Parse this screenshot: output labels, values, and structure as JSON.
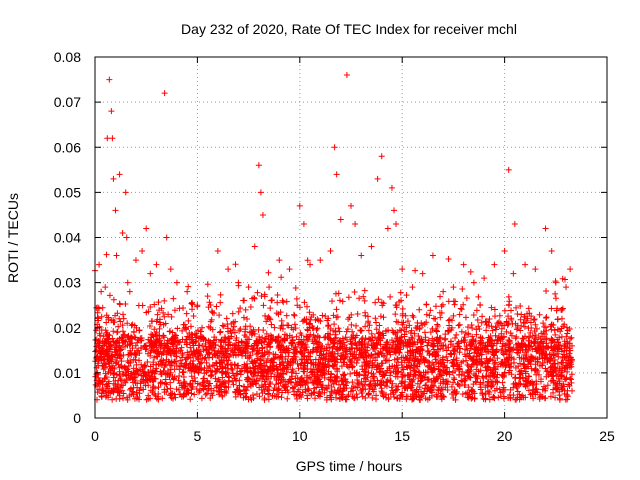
{
  "chart_data": {
    "type": "scatter",
    "title": "Day 232 of 2020, Rate Of TEC Index for receiver mchl",
    "xlabel": "GPS time / hours",
    "ylabel": "ROTI / TECUs",
    "xlim": [
      0,
      25
    ],
    "ylim": [
      0,
      0.08
    ],
    "xticks": [
      "0",
      "5",
      "10",
      "15",
      "20",
      "25"
    ],
    "yticks": [
      "0",
      "0.01",
      "0.02",
      "0.03",
      "0.04",
      "0.05",
      "0.06",
      "0.07",
      "0.08"
    ],
    "grid": true,
    "marker": "+",
    "color": "#ff0000",
    "series": [
      {
        "x": [
          0.2,
          0.3,
          0.5,
          0.6,
          0.7,
          0.8,
          0.85,
          0.9,
          1.0,
          1.05,
          1.2,
          1.35,
          1.5,
          1.55,
          1.6,
          1.7,
          2.0,
          2.3,
          2.5,
          2.7,
          3.0,
          3.4,
          3.5,
          3.7,
          4.0,
          4.5,
          5.0,
          5.5,
          6.0,
          6.5,
          7.0,
          7.5,
          7.8,
          8.0,
          8.1,
          8.2,
          8.5,
          9.0,
          9.5,
          10.0,
          10.2,
          10.5,
          11.0,
          11.5,
          11.7,
          11.8,
          12.0,
          12.3,
          12.5,
          12.7,
          13.0,
          13.5,
          13.8,
          14.0,
          14.3,
          14.5,
          14.6,
          14.7,
          15.0,
          15.5,
          16.0,
          16.5,
          17.0,
          17.5,
          18.0,
          18.5,
          19.0,
          19.5,
          20.0,
          20.2,
          20.5,
          21.0,
          21.5,
          22.0,
          22.3,
          22.5,
          23.0,
          23.2
        ],
        "y": [
          0.034,
          0.028,
          0.029,
          0.062,
          0.075,
          0.068,
          0.062,
          0.053,
          0.046,
          0.036,
          0.054,
          0.041,
          0.05,
          0.04,
          0.03,
          0.028,
          0.035,
          0.037,
          0.042,
          0.032,
          0.034,
          0.072,
          0.04,
          0.033,
          0.03,
          0.028,
          0.025,
          0.027,
          0.037,
          0.033,
          0.03,
          0.029,
          0.038,
          0.056,
          0.05,
          0.045,
          0.029,
          0.035,
          0.033,
          0.047,
          0.043,
          0.034,
          0.035,
          0.037,
          0.06,
          0.054,
          0.044,
          0.076,
          0.047,
          0.043,
          0.036,
          0.038,
          0.053,
          0.058,
          0.042,
          0.051,
          0.046,
          0.043,
          0.033,
          0.029,
          0.032,
          0.036,
          0.028,
          0.029,
          0.034,
          0.03,
          0.031,
          0.034,
          0.037,
          0.055,
          0.043,
          0.034,
          0.033,
          0.042,
          0.037,
          0.03,
          0.029,
          0.033
        ]
      }
    ]
  }
}
